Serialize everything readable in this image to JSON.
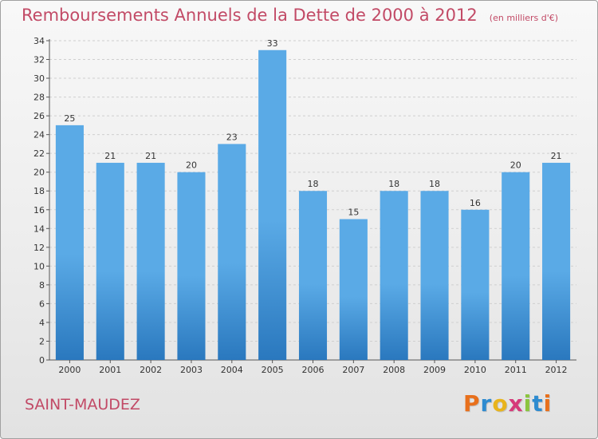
{
  "title": "Remboursements Annuels de la Dette de 2000 à 2012",
  "unit_note": "(en milliers d'€)",
  "commune": "SAINT-MAUDEZ",
  "logo": {
    "text": "Proxiti",
    "letters": [
      "P",
      "r",
      "o",
      "x",
      "i",
      "t",
      "i"
    ],
    "colors": [
      "#e8701c",
      "#2e8bd0",
      "#e8b41c",
      "#d63a7a",
      "#8bc53f",
      "#2e8bd0",
      "#e8701c"
    ]
  },
  "colors": {
    "bar": "#5aaae6",
    "bar_dark": "#2a78be",
    "title": "#c24a66"
  },
  "chart_data": {
    "type": "bar",
    "title": "Remboursements Annuels de la Dette de 2000 à 2012",
    "xlabel": "",
    "ylabel": "",
    "categories": [
      "2000",
      "2001",
      "2002",
      "2003",
      "2004",
      "2005",
      "2006",
      "2007",
      "2008",
      "2009",
      "2010",
      "2011",
      "2012"
    ],
    "values": [
      25,
      21,
      21,
      20,
      23,
      33,
      18,
      15,
      18,
      18,
      16,
      20,
      21
    ],
    "ylim": [
      0,
      34
    ],
    "yticks": [
      0,
      2,
      4,
      6,
      8,
      10,
      12,
      14,
      16,
      18,
      20,
      22,
      24,
      26,
      28,
      30,
      32,
      34
    ],
    "grid": true,
    "legend": "none"
  }
}
